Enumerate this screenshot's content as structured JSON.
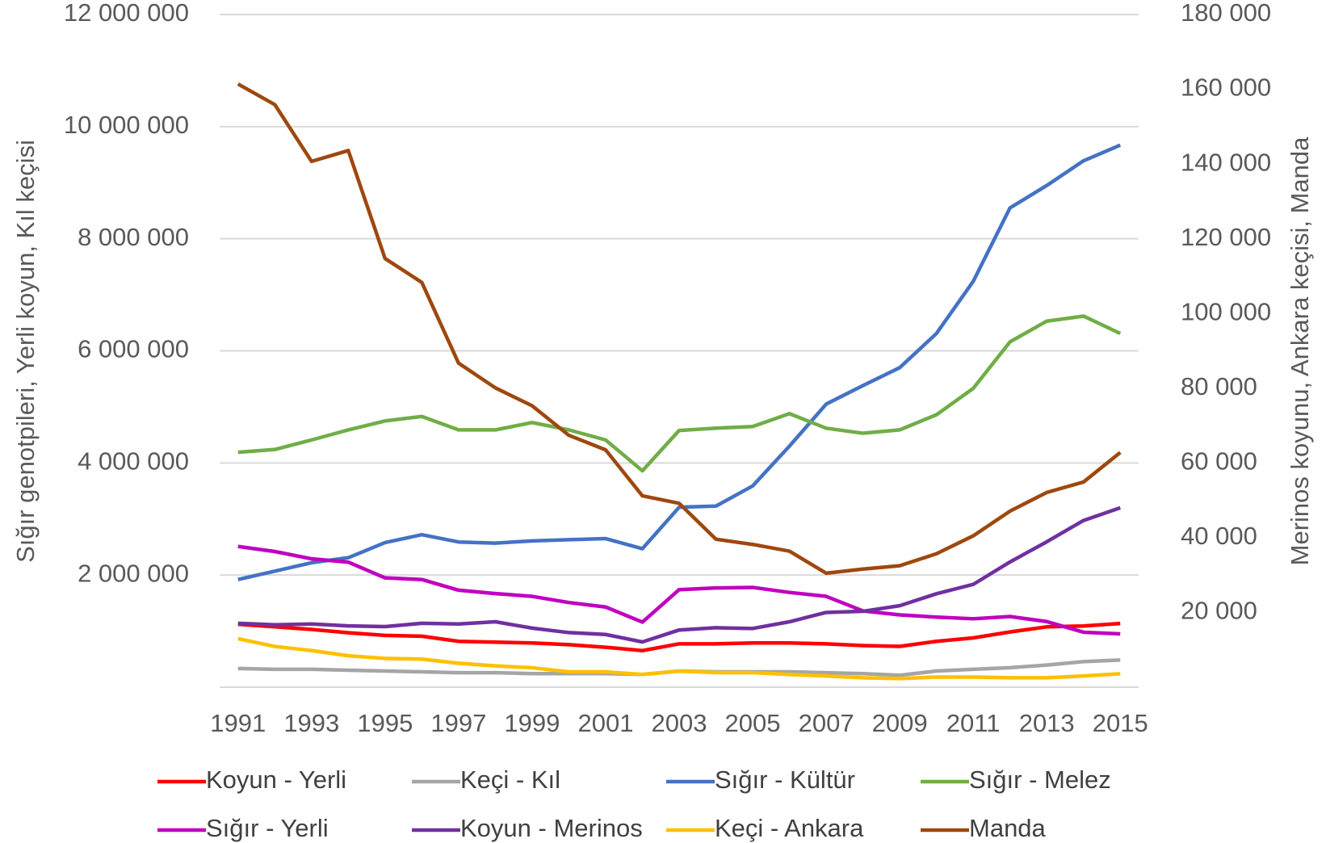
{
  "chart_data": {
    "type": "line",
    "x": [
      1991,
      1992,
      1993,
      1994,
      1995,
      1996,
      1997,
      1998,
      1999,
      2000,
      2001,
      2002,
      2003,
      2004,
      2005,
      2006,
      2007,
      2008,
      2009,
      2010,
      2011,
      2012,
      2013,
      2014,
      2015
    ],
    "xlim": [
      1990.5,
      2015.5
    ],
    "xticks": [
      1991,
      1993,
      1995,
      1997,
      1999,
      2001,
      2003,
      2005,
      2007,
      2009,
      2011,
      2013,
      2015
    ],
    "ylim": [
      0,
      12000000
    ],
    "yticks": [
      {
        "value": 2000000,
        "label": "2 000 000"
      },
      {
        "value": 4000000,
        "label": "4 000 000"
      },
      {
        "value": 6000000,
        "label": "6 000 000"
      },
      {
        "value": 8000000,
        "label": "8 000 000"
      },
      {
        "value": 10000000,
        "label": "10 000 000"
      },
      {
        "value": 12000000,
        "label": "12 000 000"
      }
    ],
    "y2lim": [
      0,
      180000
    ],
    "y2ticks": [
      {
        "value": 20000,
        "label": "20 000"
      },
      {
        "value": 40000,
        "label": "40 000"
      },
      {
        "value": 60000,
        "label": "60 000"
      },
      {
        "value": 80000,
        "label": "80 000"
      },
      {
        "value": 100000,
        "label": "100 000"
      },
      {
        "value": 120000,
        "label": "120 000"
      },
      {
        "value": 140000,
        "label": "140 000"
      },
      {
        "value": 160000,
        "label": "160 000"
      },
      {
        "value": 180000,
        "label": "180 000"
      }
    ],
    "ylabel": "Sığır genotpileri, Yerli koyun, Kıl keçisi",
    "y2label": "Merinos koyunu, Ankara keçisi, Manda",
    "grid": true,
    "series": [
      {
        "name": "Koyun - Yerli",
        "color": "#ff0000",
        "values": [
          1121000,
          1076000,
          1030000,
          970000,
          924000,
          909000,
          818000,
          803000,
          788000,
          758000,
          712000,
          652000,
          773000,
          773000,
          788000,
          788000,
          773000,
          742000,
          727000,
          818000,
          879000,
          985000,
          1076000,
          1091000,
          1136000
        ]
      },
      {
        "name": "Keçi - Kıl",
        "color": "#a5a5a5",
        "values": [
          333000,
          318000,
          318000,
          303000,
          288000,
          273000,
          258000,
          258000,
          242000,
          242000,
          242000,
          227000,
          288000,
          273000,
          273000,
          273000,
          258000,
          242000,
          212000,
          288000,
          318000,
          348000,
          394000,
          455000,
          485000
        ]
      },
      {
        "name": "Sığır - Kültür",
        "color": "#4472c4",
        "values": [
          1920000,
          2070000,
          2220000,
          2310000,
          2580000,
          2720000,
          2590000,
          2570000,
          2610000,
          2630000,
          2650000,
          2470000,
          3210000,
          3230000,
          3590000,
          4300000,
          5050000,
          5380000,
          5700000,
          6310000,
          7240000,
          8550000,
          8950000,
          9390000,
          9670000
        ]
      },
      {
        "name": "Sığır - Melez",
        "color": "#70ad47",
        "values": [
          4190000,
          4240000,
          4410000,
          4590000,
          4750000,
          4830000,
          4590000,
          4590000,
          4720000,
          4590000,
          4410000,
          3860000,
          4580000,
          4620000,
          4650000,
          4880000,
          4620000,
          4530000,
          4590000,
          4860000,
          5330000,
          6160000,
          6530000,
          6620000,
          6310000
        ]
      },
      {
        "name": "Sığır - Yerli",
        "color": "#c000c0",
        "values": [
          2510000,
          2420000,
          2290000,
          2230000,
          1950000,
          1920000,
          1730000,
          1670000,
          1620000,
          1510000,
          1430000,
          1160000,
          1740000,
          1770000,
          1780000,
          1690000,
          1620000,
          1360000,
          1290000,
          1250000,
          1220000,
          1260000,
          1170000,
          980000,
          950000
        ]
      },
      {
        "name": "Koyun - Merinos",
        "color": "#7030a0",
        "axis": "y2",
        "values": [
          17100,
          16700,
          16900,
          16400,
          16200,
          17100,
          16900,
          17500,
          15800,
          14600,
          14100,
          12100,
          15300,
          15900,
          15700,
          17500,
          20000,
          20300,
          21800,
          25000,
          27500,
          33500,
          38900,
          44600,
          48000
        ]
      },
      {
        "name": "Keçi - Ankara",
        "color": "#ffc000",
        "axis": "y2",
        "values": [
          12970,
          10900,
          9800,
          8400,
          7700,
          7500,
          6400,
          5700,
          5200,
          4100,
          4100,
          3400,
          4300,
          3900,
          3900,
          3400,
          3000,
          2500,
          2300,
          2700,
          2700,
          2500,
          2500,
          3000,
          3600
        ]
      },
      {
        "name": "Manda",
        "color": "#9e480e",
        "axis": "y2",
        "values": [
          161400,
          155900,
          140700,
          143600,
          114700,
          108300,
          86700,
          80100,
          75300,
          67400,
          63500,
          51200,
          49200,
          39600,
          38200,
          36400,
          30500,
          31600,
          32500,
          35700,
          40500,
          47100,
          52100,
          54900,
          62800
        ]
      }
    ]
  }
}
